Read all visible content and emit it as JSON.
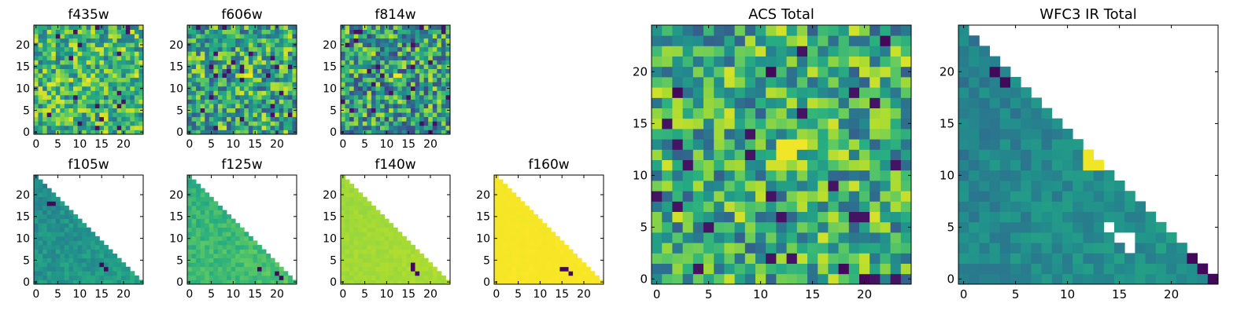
{
  "chart_data": [
    {
      "type": "heatmap",
      "title": "f435w",
      "xticks": [
        "0",
        "5",
        "10",
        "15",
        "20"
      ],
      "yticks": [
        "0",
        "5",
        "10",
        "15",
        "20"
      ],
      "grid_size": 25,
      "xlim": [
        0,
        25
      ],
      "ylim": [
        0,
        25
      ],
      "pattern": "noise",
      "colormap": "viridis"
    },
    {
      "type": "heatmap",
      "title": "f606w",
      "xticks": [
        "0",
        "5",
        "10",
        "15",
        "20"
      ],
      "yticks": [
        "0",
        "5",
        "10",
        "15",
        "20"
      ],
      "grid_size": 25,
      "xlim": [
        0,
        25
      ],
      "ylim": [
        0,
        25
      ],
      "pattern": "noise",
      "colormap": "viridis"
    },
    {
      "type": "heatmap",
      "title": "f814w",
      "xticks": [
        "0",
        "5",
        "10",
        "15",
        "20"
      ],
      "yticks": [
        "0",
        "5",
        "10",
        "15",
        "20"
      ],
      "grid_size": 25,
      "xlim": [
        0,
        25
      ],
      "ylim": [
        0,
        25
      ],
      "pattern": "noise",
      "colormap": "viridis"
    },
    {
      "type": "heatmap",
      "title": "f105w",
      "xticks": [
        "0",
        "5",
        "10",
        "15",
        "20"
      ],
      "yticks": [
        "0",
        "5",
        "10",
        "15",
        "20"
      ],
      "grid_size": 25,
      "xlim": [
        0,
        25
      ],
      "ylim": [
        0,
        25
      ],
      "pattern": "triangle",
      "colormap": "viridis"
    },
    {
      "type": "heatmap",
      "title": "f125w",
      "xticks": [
        "0",
        "5",
        "10",
        "15",
        "20"
      ],
      "yticks": [
        "0",
        "5",
        "10",
        "15",
        "20"
      ],
      "grid_size": 25,
      "xlim": [
        0,
        25
      ],
      "ylim": [
        0,
        25
      ],
      "pattern": "triangle",
      "colormap": "viridis"
    },
    {
      "type": "heatmap",
      "title": "f140w",
      "xticks": [
        "0",
        "5",
        "10",
        "15",
        "20"
      ],
      "yticks": [
        "0",
        "5",
        "10",
        "15",
        "20"
      ],
      "grid_size": 25,
      "xlim": [
        0,
        25
      ],
      "ylim": [
        0,
        25
      ],
      "pattern": "triangle",
      "colormap": "viridis"
    },
    {
      "type": "heatmap",
      "title": "f160w",
      "xticks": [
        "0",
        "5",
        "10",
        "15",
        "20"
      ],
      "yticks": [
        "0",
        "5",
        "10",
        "15",
        "20"
      ],
      "grid_size": 25,
      "xlim": [
        0,
        25
      ],
      "ylim": [
        0,
        25
      ],
      "pattern": "triangle",
      "colormap": "viridis"
    },
    {
      "type": "heatmap",
      "title": "ACS Total",
      "xticks": [
        "0",
        "5",
        "10",
        "15",
        "20"
      ],
      "yticks": [
        "0",
        "5",
        "10",
        "15",
        "20"
      ],
      "grid_size": 25,
      "xlim": [
        0,
        25
      ],
      "ylim": [
        0,
        25
      ],
      "pattern": "noise",
      "colormap": "viridis"
    },
    {
      "type": "heatmap",
      "title": "WFC3 IR Total",
      "xticks": [
        "0",
        "5",
        "10",
        "15",
        "20"
      ],
      "yticks": [
        "0",
        "5",
        "10",
        "15",
        "20"
      ],
      "grid_size": 25,
      "xlim": [
        0,
        25
      ],
      "ylim": [
        0,
        25
      ],
      "pattern": "triangle",
      "colormap": "viridis"
    }
  ]
}
